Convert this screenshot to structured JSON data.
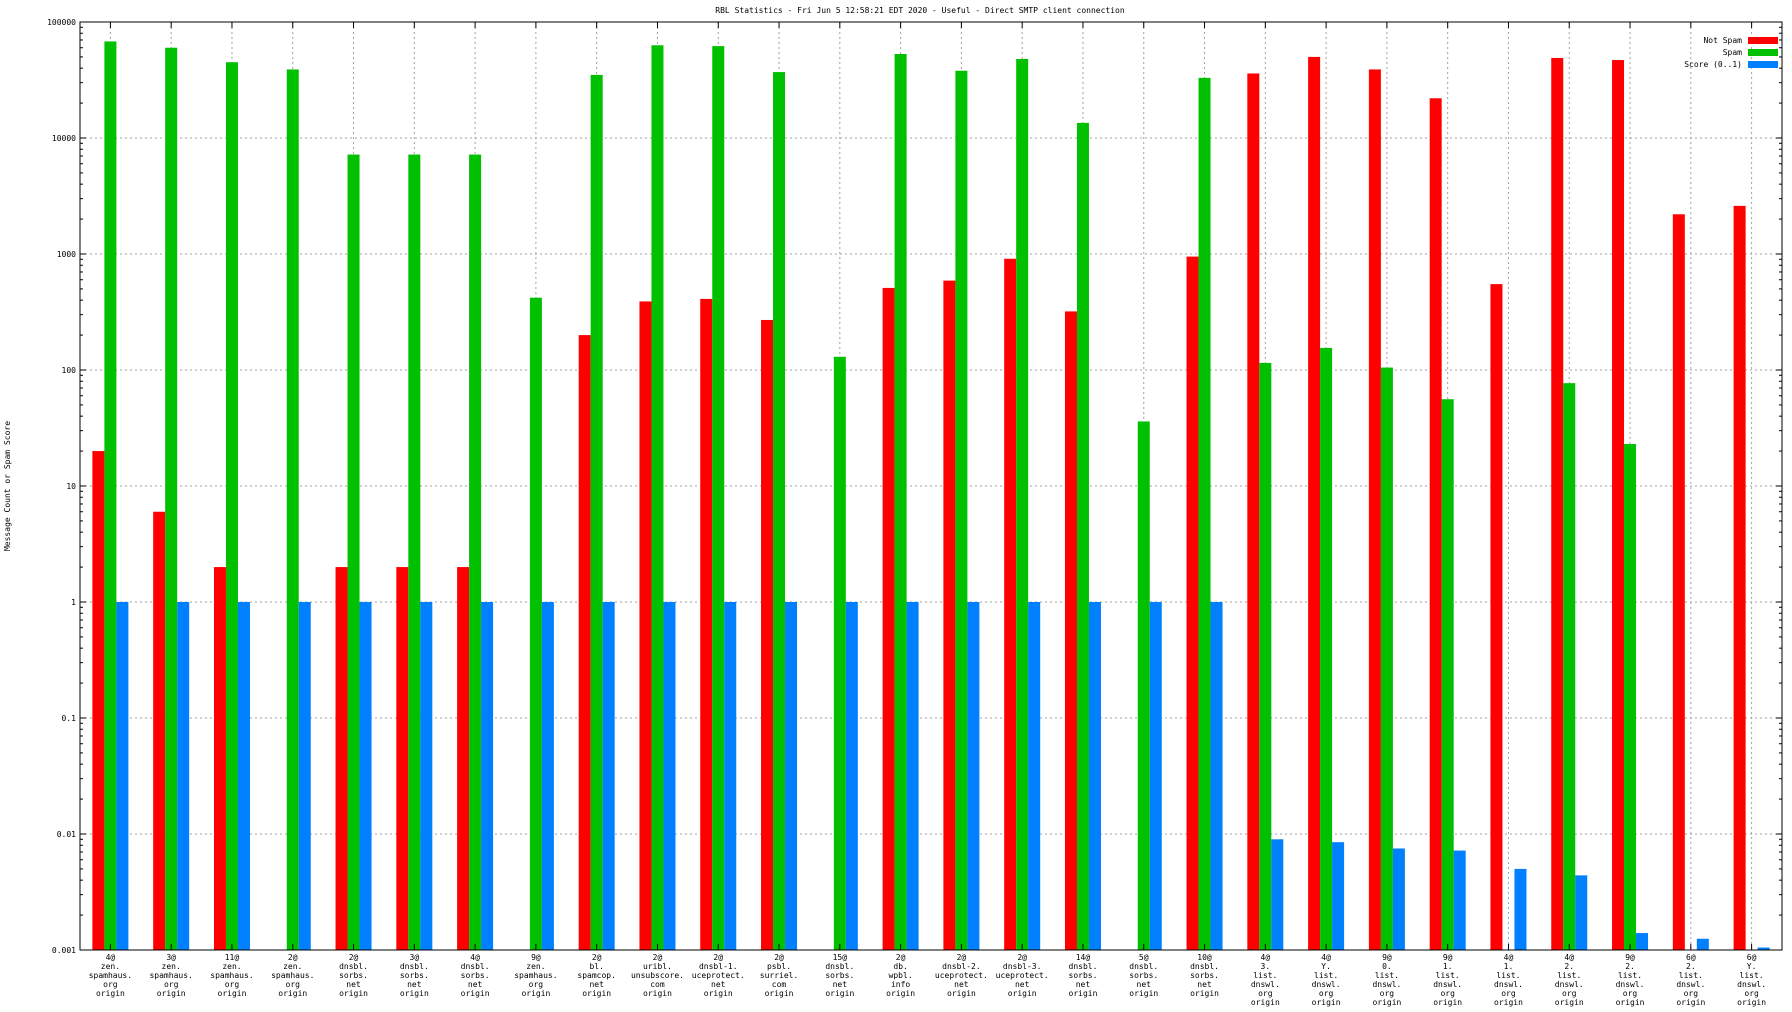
{
  "chart_data": {
    "type": "bar",
    "title": "RBL Statistics - Fri Jun  5 12:58:21 EDT 2020 - Useful - Direct SMTP client connection",
    "xlabel": "",
    "ylabel": "Message Count or Spam Score",
    "yscale": "log",
    "ylim": [
      0.001,
      100000
    ],
    "yticks": [
      "0.001",
      "0.01",
      "0.1",
      "1",
      "10",
      "100",
      "1000",
      "10000",
      "100000"
    ],
    "grid": true,
    "legend_position": "top-right",
    "categories": [
      [
        "4@",
        "zen.",
        "spamhaus.",
        "org",
        "origin"
      ],
      [
        "3@",
        "zen.",
        "spamhaus.",
        "org",
        "origin"
      ],
      [
        "11@",
        "zen.",
        "spamhaus.",
        "org",
        "origin"
      ],
      [
        "2@",
        "zen.",
        "spamhaus.",
        "org",
        "origin"
      ],
      [
        "2@",
        "dnsbl.",
        "sorbs.",
        "net",
        "origin"
      ],
      [
        "3@",
        "dnsbl.",
        "sorbs.",
        "net",
        "origin"
      ],
      [
        "4@",
        "dnsbl.",
        "sorbs.",
        "net",
        "origin"
      ],
      [
        "9@",
        "zen.",
        "spamhaus.",
        "org",
        "origin"
      ],
      [
        "2@",
        "bl.",
        "spamcop.",
        "net",
        "origin"
      ],
      [
        "2@",
        "uribl.",
        "unsubscore.",
        "com",
        "origin"
      ],
      [
        "2@",
        "dnsbl-1.",
        "uceprotect.",
        "net",
        "origin"
      ],
      [
        "2@",
        "psbl.",
        "surriel.",
        "com",
        "origin"
      ],
      [
        "15@",
        "dnsbl.",
        "sorbs.",
        "net",
        "origin"
      ],
      [
        "2@",
        "db.",
        "wpbl.",
        "info",
        "origin"
      ],
      [
        "2@",
        "dnsbl-2.",
        "uceprotect.",
        "net",
        "origin"
      ],
      [
        "2@",
        "dnsbl-3.",
        "uceprotect.",
        "net",
        "origin"
      ],
      [
        "14@",
        "dnsbl.",
        "sorbs.",
        "net",
        "origin"
      ],
      [
        "5@",
        "dnsbl.",
        "sorbs.",
        "net",
        "origin"
      ],
      [
        "10@",
        "dnsbl.",
        "sorbs.",
        "net",
        "origin"
      ],
      [
        "4@",
        "3.",
        "list.",
        "dnswl.",
        "org",
        "origin"
      ],
      [
        "4@",
        "Y.",
        "list.",
        "dnswl.",
        "org",
        "origin"
      ],
      [
        "9@",
        "0.",
        "list.",
        "dnswl.",
        "org",
        "origin"
      ],
      [
        "9@",
        "1.",
        "list.",
        "dnswl.",
        "org",
        "origin"
      ],
      [
        "4@",
        "1.",
        "list.",
        "dnswl.",
        "org",
        "origin"
      ],
      [
        "4@",
        "2.",
        "list.",
        "dnswl.",
        "org",
        "origin"
      ],
      [
        "9@",
        "2.",
        "list.",
        "dnswl.",
        "org",
        "origin"
      ],
      [
        "6@",
        "2.",
        "list.",
        "dnswl.",
        "org",
        "origin"
      ],
      [
        "6@",
        "Y.",
        "list.",
        "dnswl.",
        "org",
        "origin"
      ]
    ],
    "series": [
      {
        "name": "Not Spam",
        "color": "#ff0000",
        "values": [
          20,
          6,
          2,
          null,
          2,
          2,
          2,
          null,
          200,
          390,
          410,
          270,
          null,
          510,
          590,
          910,
          320,
          null,
          950,
          36000,
          50000,
          39000,
          22000,
          550,
          49000,
          47000,
          2200,
          2600
        ]
      },
      {
        "name": "Spam",
        "color": "#00c000",
        "values": [
          68000,
          60000,
          45000,
          39000,
          7200,
          7200,
          7200,
          420,
          35000,
          63000,
          62000,
          37000,
          130,
          53000,
          38000,
          48000,
          13500,
          36,
          33000,
          115,
          155,
          105,
          56,
          null,
          77,
          23,
          null,
          null
        ]
      },
      {
        "name": "Score (0..1)",
        "color": "#0080ff",
        "values": [
          1,
          1,
          1,
          1,
          1,
          1,
          1,
          1,
          1,
          1,
          1,
          1,
          1,
          1,
          1,
          1,
          1,
          1,
          1,
          0.009,
          0.0085,
          0.0075,
          0.0072,
          0.005,
          0.0044,
          0.0014,
          0.00125,
          0.00105
        ]
      }
    ]
  }
}
